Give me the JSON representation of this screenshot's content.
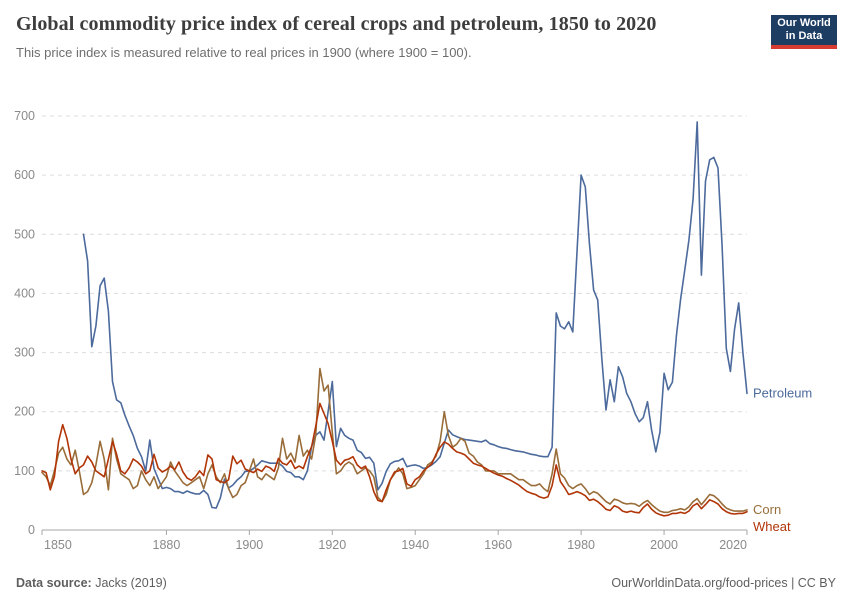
{
  "header": {
    "title": "Global commodity price index of cereal crops and petroleum, 1850 to 2020",
    "subtitle": "This price index is measured relative to real prices in 1900 (where 1900 = 100)."
  },
  "logo": {
    "line1": "Our World",
    "line2": "in Data",
    "bg_color": "#1d3d63",
    "stripe_color": "#d73c32"
  },
  "footer": {
    "source_label": "Data source:",
    "source_value": "Jacks (2019)",
    "right_text": "OurWorldinData.org/food-prices | CC BY"
  },
  "chart_data": {
    "type": "line",
    "title": "Global commodity price index of cereal crops and petroleum, 1850 to 2020",
    "subtitle": "This price index is measured relative to real prices in 1900 (where 1900 = 100)",
    "xlabel": "",
    "ylabel": "",
    "xlim": [
      1850,
      2020
    ],
    "ylim": [
      0,
      700
    ],
    "x_ticks": [
      1850,
      1880,
      1900,
      1920,
      1940,
      1960,
      1980,
      2000,
      2020
    ],
    "y_ticks": [
      0,
      100,
      200,
      300,
      400,
      500,
      600,
      700
    ],
    "grid": "horizontal-dashed",
    "legend_position": "end-of-line-labels",
    "series": [
      {
        "name": "Petroleum",
        "color": "#4C6A9C",
        "start_year": 1860,
        "values": [
          500,
          455,
          310,
          345,
          413,
          426,
          370,
          251,
          220,
          215,
          194,
          176,
          160,
          138,
          124,
          100,
          152,
          104,
          87,
          70,
          72,
          70,
          65,
          65,
          62,
          66,
          63,
          61,
          61,
          67,
          60,
          38,
          37,
          54,
          86,
          71,
          76,
          84,
          90,
          99,
          100,
          104,
          110,
          117,
          115,
          113,
          113,
          113,
          108,
          99,
          97,
          90,
          90,
          85,
          100,
          141,
          160,
          166,
          152,
          200,
          251,
          141,
          172,
          160,
          155,
          152,
          135,
          131,
          121,
          123,
          113,
          68,
          79,
          99,
          112,
          116,
          117,
          121,
          107,
          109,
          110,
          108,
          104,
          106,
          110,
          116,
          124,
          147,
          169,
          161,
          158,
          155,
          153,
          152,
          151,
          150,
          149,
          152,
          146,
          144,
          141,
          139,
          138,
          136,
          134,
          133,
          132,
          130,
          128,
          127,
          125,
          124,
          124,
          140,
          367,
          345,
          340,
          352,
          335,
          470,
          600,
          580,
          485,
          406,
          389,
          288,
          203,
          254,
          217,
          276,
          259,
          231,
          217,
          197,
          183,
          190,
          217,
          169,
          132,
          165,
          265,
          237,
          250,
          330,
          390,
          440,
          490,
          560,
          690,
          431,
          590,
          626,
          630,
          612,
          480,
          307,
          268,
          340,
          384,
          300,
          231
        ]
      },
      {
        "name": "Corn",
        "color": "#996D39",
        "start_year": 1850,
        "values": [
          97,
          90,
          75,
          100,
          130,
          140,
          120,
          110,
          135,
          100,
          60,
          65,
          80,
          110,
          150,
          120,
          68,
          155,
          120,
          95,
          90,
          85,
          70,
          75,
          100,
          85,
          75,
          90,
          70,
          80,
          90,
          115,
          100,
          90,
          80,
          75,
          80,
          85,
          90,
          70,
          95,
          110,
          90,
          80,
          95,
          70,
          55,
          60,
          75,
          80,
          100,
          120,
          90,
          85,
          95,
          90,
          85,
          105,
          155,
          120,
          130,
          115,
          160,
          125,
          135,
          120,
          160,
          273,
          235,
          245,
          165,
          95,
          100,
          110,
          115,
          110,
          95,
          100,
          105,
          100,
          90,
          55,
          48,
          60,
          85,
          95,
          105,
          95,
          70,
          72,
          75,
          85,
          95,
          110,
          115,
          125,
          150,
          200,
          160,
          140,
          145,
          155,
          150,
          130,
          125,
          115,
          110,
          100,
          100,
          100,
          95,
          95,
          95,
          95,
          90,
          85,
          85,
          80,
          75,
          75,
          78,
          70,
          65,
          95,
          137,
          95,
          88,
          75,
          70,
          75,
          78,
          70,
          60,
          65,
          62,
          55,
          48,
          44,
          52,
          50,
          46,
          44,
          45,
          44,
          40,
          46,
          50,
          43,
          37,
          32,
          30,
          30,
          33,
          34,
          36,
          34,
          39,
          48,
          53,
          43,
          51,
          60,
          58,
          52,
          44,
          37,
          34,
          32,
          32,
          32,
          34
        ]
      },
      {
        "name": "Wheat",
        "color": "#B13507",
        "start_year": 1850,
        "values": [
          100,
          97,
          68,
          90,
          150,
          178,
          155,
          120,
          95,
          105,
          110,
          125,
          115,
          100,
          95,
          90,
          120,
          150,
          128,
          100,
          95,
          105,
          120,
          115,
          108,
          95,
          100,
          128,
          105,
          98,
          102,
          108,
          102,
          115,
          98,
          88,
          84,
          90,
          100,
          92,
          127,
          120,
          85,
          82,
          80,
          85,
          125,
          112,
          118,
          103,
          100,
          97,
          103,
          99,
          108,
          105,
          99,
          121,
          113,
          110,
          118,
          104,
          108,
          104,
          124,
          141,
          175,
          214,
          197,
          180,
          150,
          118,
          110,
          118,
          120,
          124,
          110,
          104,
          108,
          90,
          65,
          50,
          48,
          68,
          85,
          98,
          100,
          104,
          78,
          74,
          85,
          90,
          100,
          106,
          112,
          128,
          140,
          149,
          145,
          138,
          132,
          130,
          127,
          120,
          113,
          110,
          108,
          104,
          100,
          96,
          93,
          91,
          87,
          84,
          80,
          76,
          70,
          65,
          62,
          60,
          56,
          54,
          56,
          75,
          110,
          82,
          72,
          60,
          62,
          65,
          62,
          58,
          50,
          52,
          48,
          42,
          35,
          33,
          41,
          38,
          32,
          30,
          32,
          30,
          29,
          38,
          44,
          35,
          29,
          26,
          24,
          25,
          28,
          28,
          30,
          28,
          32,
          41,
          45,
          36,
          43,
          51,
          48,
          44,
          36,
          31,
          28,
          27,
          28,
          28,
          31
        ]
      }
    ]
  }
}
